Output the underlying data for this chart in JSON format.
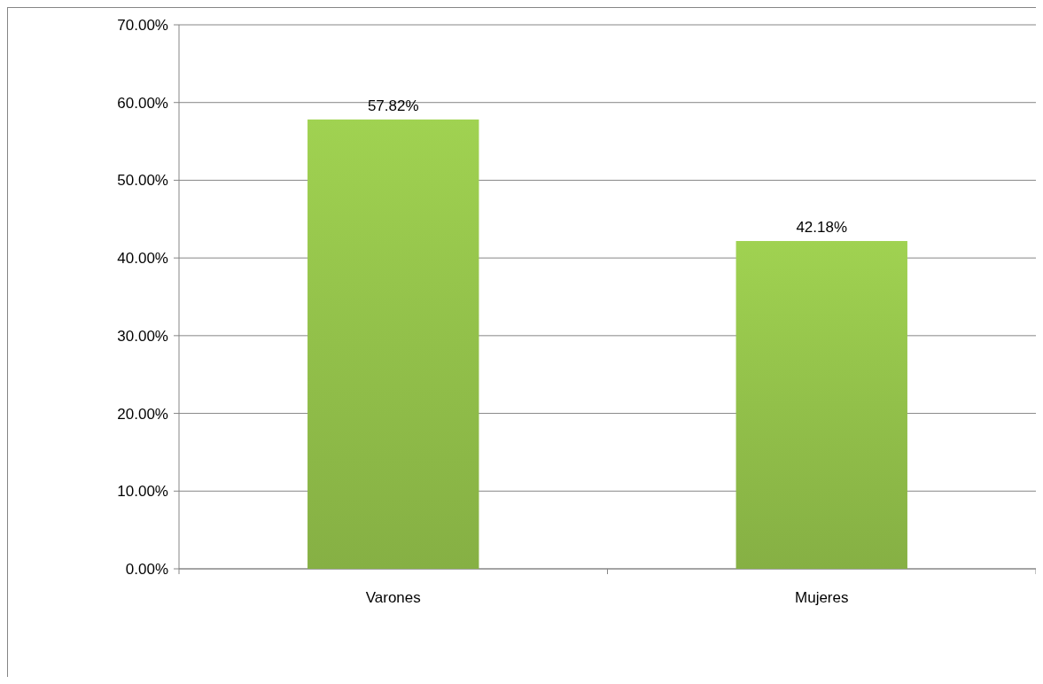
{
  "chart_data": {
    "type": "bar",
    "categories": [
      "Varones",
      "Mujeres"
    ],
    "values": [
      57.82,
      42.18
    ],
    "value_labels": [
      "57.82%",
      "42.18%"
    ],
    "color": "#92c04a",
    "ylim": [
      0,
      70
    ],
    "yticks": [
      {
        "value": 0,
        "label": "0.00%"
      },
      {
        "value": 10,
        "label": "10.00%"
      },
      {
        "value": 20,
        "label": "20.00%"
      },
      {
        "value": 30,
        "label": "30.00%"
      },
      {
        "value": 40,
        "label": "40.00%"
      },
      {
        "value": 50,
        "label": "50.00%"
      },
      {
        "value": 60,
        "label": "60.00%"
      },
      {
        "value": 70,
        "label": "70.00%"
      }
    ],
    "grid": "y"
  }
}
